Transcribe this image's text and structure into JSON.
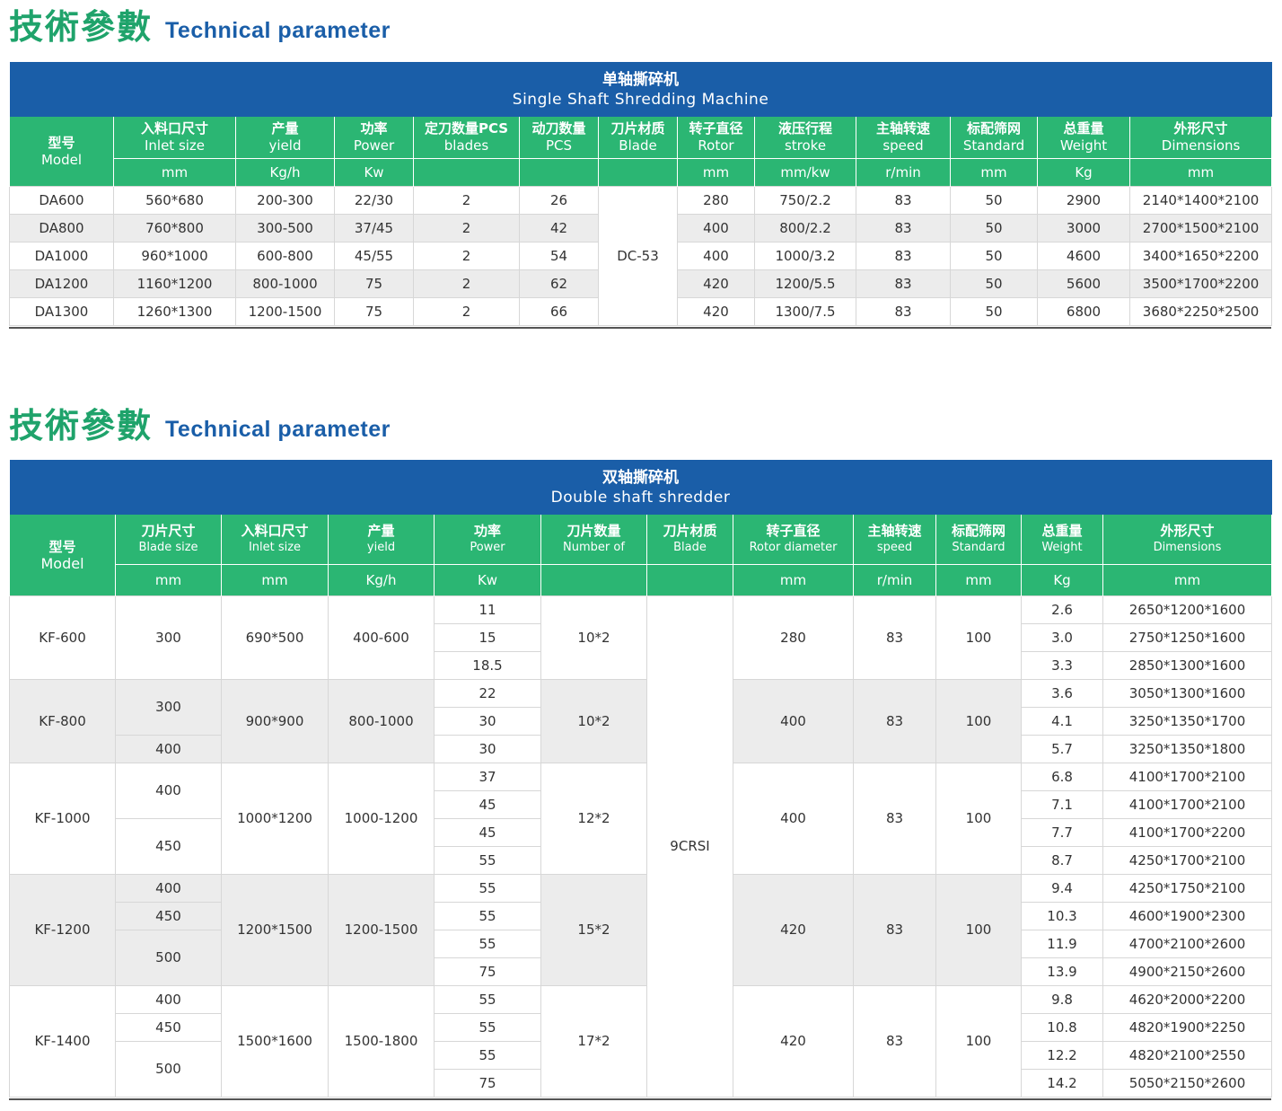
{
  "section1": {
    "title_cn": "技術參數",
    "title_en": "Technical parameter",
    "caption_cn": "单轴撕碎机",
    "caption_en": "Single Shaft Shredding Machine",
    "headers": [
      {
        "cn": "型号",
        "en": "Model"
      },
      {
        "cn": "入料口尺寸",
        "en": "Inlet size",
        "unit": "mm"
      },
      {
        "cn": "产量",
        "en": "yield",
        "unit": "Kg/h"
      },
      {
        "cn": "功率",
        "en": "Power",
        "unit": "Kw"
      },
      {
        "cn": "定刀数量PCS",
        "en": "blades",
        "unit": ""
      },
      {
        "cn": "动刀数量",
        "en": "PCS",
        "unit": ""
      },
      {
        "cn": "刀片材质",
        "en": "Blade",
        "unit": ""
      },
      {
        "cn": "转子直径",
        "en": "Rotor",
        "unit": "mm"
      },
      {
        "cn": "液压行程",
        "en": "stroke",
        "unit": "mm/kw"
      },
      {
        "cn": "主轴转速",
        "en": "speed",
        "unit": "r/min"
      },
      {
        "cn": "标配筛网",
        "en": "Standard",
        "unit": "mm"
      },
      {
        "cn": "总重量",
        "en": "Weight",
        "unit": "Kg"
      },
      {
        "cn": "外形尺寸",
        "en": "Dimensions",
        "unit": "mm"
      }
    ],
    "blade_material": "DC-53",
    "rows": [
      [
        "DA600",
        "560*680",
        "200-300",
        "22/30",
        "2",
        "26",
        "280",
        "750/2.2",
        "83",
        "50",
        "2900",
        "2140*1400*2100"
      ],
      [
        "DA800",
        "760*800",
        "300-500",
        "37/45",
        "2",
        "42",
        "400",
        "800/2.2",
        "83",
        "50",
        "3000",
        "2700*1500*2100"
      ],
      [
        "DA1000",
        "960*1000",
        "600-800",
        "45/55",
        "2",
        "54",
        "400",
        "1000/3.2",
        "83",
        "50",
        "4600",
        "3400*1650*2200"
      ],
      [
        "DA1200",
        "1160*1200",
        "800-1000",
        "75",
        "2",
        "62",
        "420",
        "1200/5.5",
        "83",
        "50",
        "5600",
        "3500*1700*2200"
      ],
      [
        "DA1300",
        "1260*1300",
        "1200-1500",
        "75",
        "2",
        "66",
        "420",
        "1300/7.5",
        "83",
        "50",
        "6800",
        "3680*2250*2500"
      ]
    ]
  },
  "section2": {
    "title_cn": "技術參數",
    "title_en": "Technical parameter",
    "caption_cn": "双轴撕碎机",
    "caption_en": "Double shaft shredder",
    "headers": [
      {
        "cn": "型号",
        "en": "Model"
      },
      {
        "cn": "刀片尺寸",
        "en": "Blade size",
        "unit": "mm"
      },
      {
        "cn": "入料口尺寸",
        "en": "Inlet size",
        "unit": "mm"
      },
      {
        "cn": "产量",
        "en": "yield",
        "unit": "Kg/h"
      },
      {
        "cn": "功率",
        "en": "Power",
        "unit": "Kw"
      },
      {
        "cn": "刀片数量",
        "en": "Number of",
        "unit": ""
      },
      {
        "cn": "刀片材质",
        "en": "Blade",
        "unit": ""
      },
      {
        "cn": "转子直径",
        "en": "Rotor diameter",
        "unit": "mm"
      },
      {
        "cn": "主轴转速",
        "en": "speed",
        "unit": "r/min"
      },
      {
        "cn": "标配筛网",
        "en": "Standard",
        "unit": "mm"
      },
      {
        "cn": "总重量",
        "en": "Weight",
        "unit": "Kg"
      },
      {
        "cn": "外形尺寸",
        "en": "Dimensions",
        "unit": "mm"
      }
    ],
    "blade_material": "9CRSI",
    "groups": [
      {
        "model": "KF-600",
        "inlet": "690*500",
        "yield": "400-600",
        "blade_count": "10*2",
        "rotor": "280",
        "speed": "83",
        "screen": "100",
        "blade_sizes": [
          {
            "v": "300",
            "span": 3
          }
        ],
        "power": [
          "11",
          "15",
          "18.5"
        ],
        "weight": [
          "2.6",
          "3.0",
          "3.3"
        ],
        "dims": [
          "2650*1200*1600",
          "2750*1250*1600",
          "2850*1300*1600"
        ]
      },
      {
        "model": "KF-800",
        "inlet": "900*900",
        "yield": "800-1000",
        "blade_count": "10*2",
        "rotor": "400",
        "speed": "83",
        "screen": "100",
        "blade_sizes": [
          {
            "v": "300",
            "span": 2
          },
          {
            "v": "400",
            "span": 1
          }
        ],
        "power": [
          "22",
          "30",
          "30"
        ],
        "weight": [
          "3.6",
          "4.1",
          "5.7"
        ],
        "dims": [
          "3050*1300*1600",
          "3250*1350*1700",
          "3250*1350*1800"
        ]
      },
      {
        "model": "KF-1000",
        "inlet": "1000*1200",
        "yield": "1000-1200",
        "blade_count": "12*2",
        "rotor": "400",
        "speed": "83",
        "screen": "100",
        "blade_sizes": [
          {
            "v": "400",
            "span": 2
          },
          {
            "v": "450",
            "span": 2
          }
        ],
        "power": [
          "37",
          "45",
          "45",
          "55"
        ],
        "weight": [
          "6.8",
          "7.1",
          "7.7",
          "8.7"
        ],
        "dims": [
          "4100*1700*2100",
          "4100*1700*2100",
          "4100*1700*2200",
          "4250*1700*2100"
        ]
      },
      {
        "model": "KF-1200",
        "inlet": "1200*1500",
        "yield": "1200-1500",
        "blade_count": "15*2",
        "rotor": "420",
        "speed": "83",
        "screen": "100",
        "blade_sizes": [
          {
            "v": "400",
            "span": 1
          },
          {
            "v": "450",
            "span": 1
          },
          {
            "v": "500",
            "span": 2
          }
        ],
        "power": [
          "55",
          "55",
          "55",
          "75"
        ],
        "weight": [
          "9.4",
          "10.3",
          "11.9",
          "13.9"
        ],
        "dims": [
          "4250*1750*2100",
          "4600*1900*2300",
          "4700*2100*2600",
          "4900*2150*2600"
        ]
      },
      {
        "model": "KF-1400",
        "inlet": "1500*1600",
        "yield": "1500-1800",
        "blade_count": "17*2",
        "rotor": "420",
        "speed": "83",
        "screen": "100",
        "blade_sizes": [
          {
            "v": "400",
            "span": 1
          },
          {
            "v": "450",
            "span": 1
          },
          {
            "v": "500",
            "span": 2
          }
        ],
        "power": [
          "55",
          "55",
          "55",
          "75"
        ],
        "weight": [
          "9.8",
          "10.8",
          "12.2",
          "14.2"
        ],
        "dims": [
          "4620*2000*2200",
          "4820*1900*2250",
          "4820*2100*2550",
          "5050*2150*2600"
        ]
      }
    ]
  }
}
